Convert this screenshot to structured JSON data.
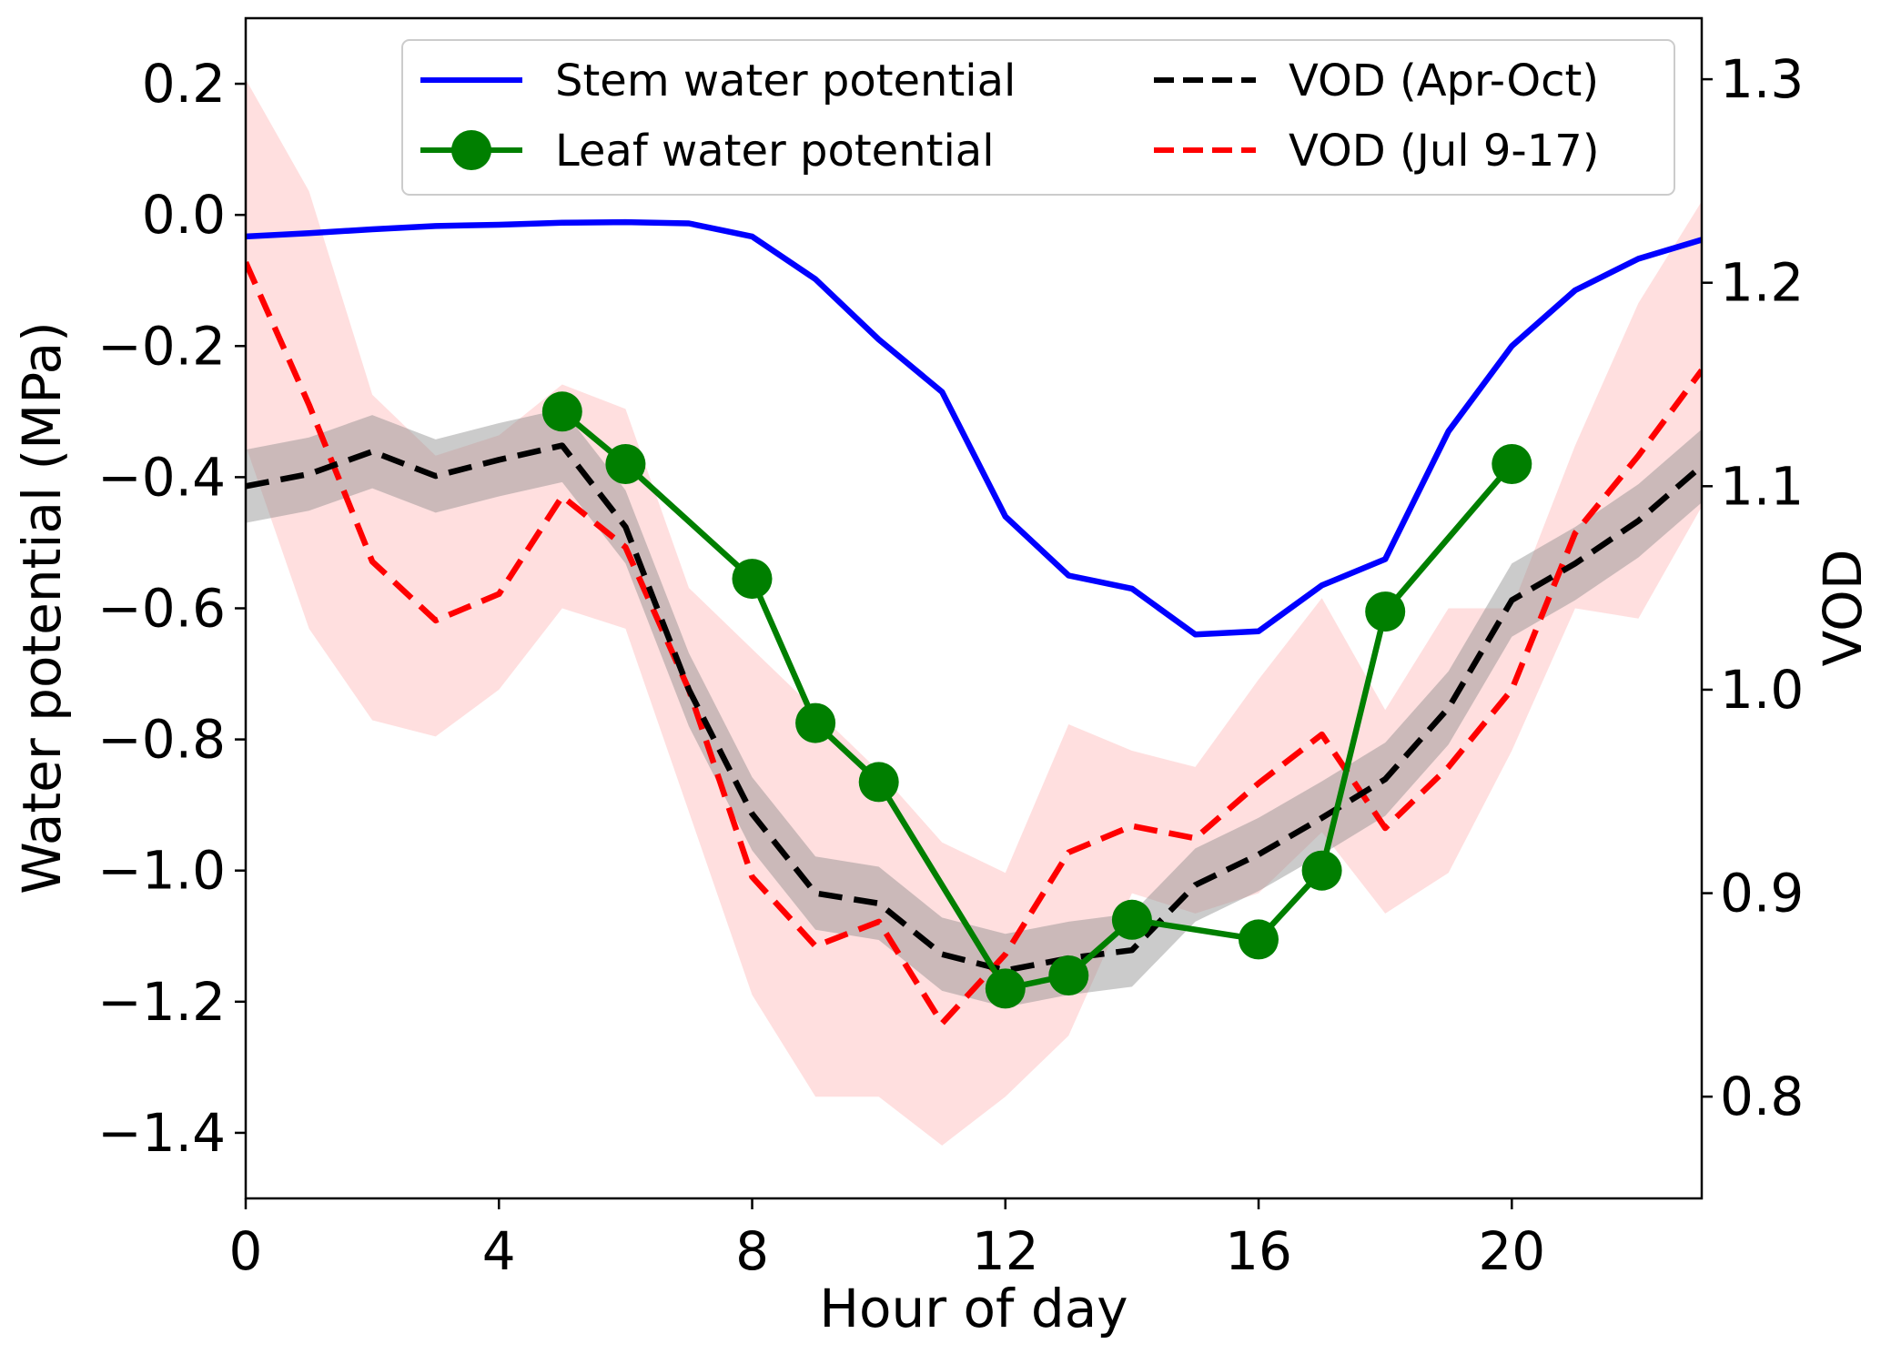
{
  "chart_data": {
    "type": "line",
    "title": "",
    "xlabel": "Hour of day",
    "ylabel_left": "Water potential (MPa)",
    "ylabel_right": "VOD",
    "xlim": [
      0,
      23
    ],
    "ylim_left": [
      -1.5,
      0.3
    ],
    "ylim_right": [
      0.75,
      1.33
    ],
    "x_ticks": [
      0,
      4,
      8,
      12,
      16,
      20
    ],
    "y_left_ticks": [
      0.2,
      0.0,
      -0.2,
      -0.4,
      -0.6,
      -0.8,
      -1.0,
      -1.2,
      -1.4
    ],
    "y_left_tick_labels": [
      "0.2",
      "0.0",
      "−0.2",
      "−0.4",
      "−0.6",
      "−0.8",
      "−1.0",
      "−1.2",
      "−1.4"
    ],
    "y_right_ticks": [
      1.3,
      1.2,
      1.1,
      1.0,
      0.9,
      0.8
    ],
    "y_right_tick_labels": [
      "1.3",
      "1.2",
      "1.1",
      "1.0",
      "0.9",
      "0.8"
    ],
    "grid": false,
    "legend_position": "top-right",
    "series": [
      {
        "name": "Stem water potential",
        "axis": "left",
        "color": "#0000ff",
        "style": "solid",
        "x": [
          0,
          1,
          2,
          3,
          4,
          5,
          6,
          7,
          8,
          9,
          10,
          11,
          12,
          13,
          14,
          15,
          16,
          17,
          18,
          19,
          20,
          21,
          22,
          23
        ],
        "values": [
          -0.033,
          -0.028,
          -0.022,
          -0.017,
          -0.015,
          -0.012,
          -0.011,
          -0.013,
          -0.033,
          -0.098,
          -0.19,
          -0.27,
          -0.46,
          -0.55,
          -0.57,
          -0.64,
          -0.635,
          -0.565,
          -0.525,
          -0.33,
          -0.2,
          -0.115,
          -0.067,
          -0.038
        ]
      },
      {
        "name": "Leaf water potential",
        "axis": "left",
        "color": "#007f00",
        "style": "solid-markers",
        "x": [
          5,
          6,
          8,
          9,
          10,
          12,
          13,
          14,
          16,
          17,
          18,
          20
        ],
        "values": [
          -0.3,
          -0.38,
          -0.555,
          -0.775,
          -0.865,
          -1.18,
          -1.16,
          -1.075,
          -1.105,
          -1.0,
          -0.605,
          -0.38
        ]
      },
      {
        "name": "VOD (Apr-Oct)",
        "axis": "right",
        "color": "#000000",
        "style": "dashed",
        "x": [
          0,
          1,
          2,
          3,
          4,
          5,
          6,
          7,
          8,
          9,
          10,
          11,
          12,
          13,
          14,
          15,
          16,
          17,
          18,
          19,
          20,
          21,
          22,
          23
        ],
        "values": [
          1.1,
          1.106,
          1.117,
          1.105,
          1.113,
          1.12,
          1.08,
          1.0,
          0.939,
          0.9,
          0.895,
          0.87,
          0.862,
          0.868,
          0.872,
          0.904,
          0.919,
          0.937,
          0.956,
          0.991,
          1.044,
          1.062,
          1.083,
          1.11
        ],
        "band": 0.018
      },
      {
        "name": "VOD (Jul 9-17)",
        "axis": "right",
        "color": "#ff0000",
        "style": "dashed",
        "x": [
          0,
          1,
          2,
          3,
          4,
          5,
          6,
          7,
          8,
          9,
          10,
          11,
          12,
          13,
          14,
          15,
          16,
          17,
          18,
          19,
          20,
          21,
          22,
          23
        ],
        "values": [
          1.21,
          1.14,
          1.063,
          1.034,
          1.047,
          1.095,
          1.07,
          1.0,
          0.908,
          0.874,
          0.886,
          0.836,
          0.87,
          0.92,
          0.933,
          0.927,
          0.954,
          0.978,
          0.932,
          0.962,
          1.0,
          1.077,
          1.115,
          1.157
        ],
        "band_upper": [
          1.3,
          1.245,
          1.145,
          1.115,
          1.125,
          1.15,
          1.138,
          1.05,
          1.02,
          0.99,
          0.96,
          0.925,
          0.91,
          0.983,
          0.97,
          0.962,
          1.005,
          1.045,
          0.99,
          1.04,
          1.04,
          1.12,
          1.19,
          1.24
        ],
        "band_lower": [
          1.12,
          1.03,
          0.985,
          0.977,
          1.0,
          1.04,
          1.03,
          0.94,
          0.85,
          0.8,
          0.8,
          0.776,
          0.8,
          0.83,
          0.9,
          0.89,
          0.9,
          0.93,
          0.89,
          0.91,
          0.97,
          1.04,
          1.035,
          1.09
        ]
      }
    ]
  }
}
